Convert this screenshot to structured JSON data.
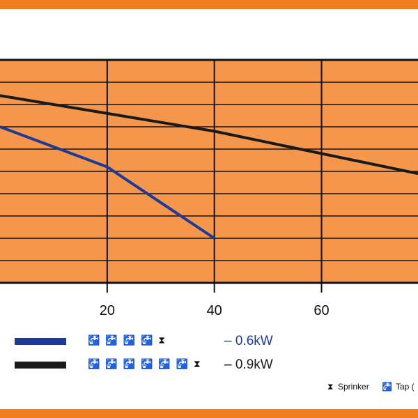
{
  "colors": {
    "plot_bg": "#f5964d",
    "frame": "#f07d1f",
    "grid": "#111111",
    "series_06": "#1e3a96",
    "series_09": "#1a1a1a"
  },
  "chart_data": {
    "type": "line",
    "xlim": [
      0,
      78
    ],
    "ylim": [
      0,
      10
    ],
    "xticks": [
      20,
      40,
      60
    ],
    "grid": true,
    "series": [
      {
        "name": "0.6kW",
        "points": [
          [
            0,
            7.0
          ],
          [
            20,
            5.2
          ],
          [
            40,
            2.0
          ]
        ]
      },
      {
        "name": "0.9kW",
        "points": [
          [
            0,
            8.4
          ],
          [
            40,
            6.8
          ],
          [
            78,
            4.9
          ]
        ]
      }
    ]
  },
  "legend": {
    "rows": [
      {
        "icons": "🚰 🚰 🚰 🚰 ⧗",
        "label": "– 0.6kW"
      },
      {
        "icons": "🚰 🚰 🚰 🚰 🚰 🚰 ⧗",
        "label": "– 0.9kW"
      }
    ],
    "key": {
      "sprinker": "Sprinker",
      "tap": "Tap ("
    }
  }
}
